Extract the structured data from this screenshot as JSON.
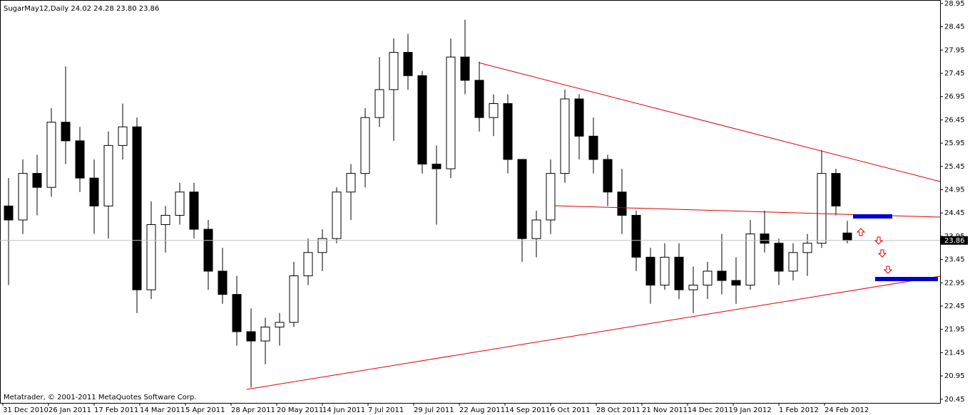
{
  "chart_data": {
    "type": "candlestick",
    "title": "SugarMay12,Daily  24.02 24.28 23.80 23.86",
    "footer": "Metatrader, © 2001-2011 MetaQuotes Software Corp.",
    "x": [
      2,
      7,
      12,
      17,
      22,
      27,
      32,
      37,
      42,
      47,
      52,
      57,
      62,
      67,
      72,
      77,
      82,
      87,
      92,
      97,
      102,
      107,
      112,
      117,
      122,
      127,
      132,
      137,
      142,
      147,
      152,
      157,
      162,
      167,
      172,
      177,
      182,
      187,
      192,
      197,
      202,
      207,
      212,
      217,
      222,
      227,
      232,
      237,
      242,
      247,
      252,
      257,
      262,
      267,
      272,
      277,
      282,
      287,
      292,
      296
    ],
    "open": [
      24.6,
      24.3,
      25.3,
      25.0,
      26.4,
      26.0,
      25.2,
      24.6,
      25.9,
      26.3,
      22.8,
      24.2,
      24.4,
      24.9,
      24.1,
      23.2,
      22.7,
      21.9,
      21.7,
      22.0,
      22.1,
      23.1,
      23.6,
      23.9,
      24.9,
      25.3,
      26.5,
      27.1,
      27.9,
      27.4,
      25.5,
      25.4,
      27.8,
      27.3,
      26.5,
      26.8,
      25.6,
      23.9,
      24.3,
      25.3,
      26.9,
      26.1,
      25.6,
      24.9,
      24.4,
      23.5,
      22.9,
      23.5,
      22.8,
      22.9,
      23.2,
      23.0,
      22.9,
      24.0,
      23.8,
      23.2,
      23.6,
      23.8,
      25.3,
      24.02
    ],
    "high": [
      25.2,
      25.6,
      25.7,
      26.7,
      27.6,
      26.3,
      25.6,
      26.2,
      26.8,
      26.5,
      24.7,
      24.6,
      25.1,
      25.1,
      24.3,
      23.7,
      23.1,
      22.4,
      22.2,
      22.3,
      23.4,
      23.9,
      24.1,
      25.0,
      25.5,
      26.7,
      27.8,
      28.2,
      28.3,
      27.5,
      25.9,
      28.2,
      28.6,
      27.7,
      27.0,
      27.0,
      25.6,
      24.5,
      25.6,
      27.1,
      27.0,
      26.5,
      25.7,
      25.4,
      24.5,
      23.7,
      23.8,
      23.8,
      23.3,
      23.4,
      24.0,
      23.5,
      24.3,
      24.5,
      23.9,
      23.8,
      24.0,
      25.8,
      25.4,
      24.28
    ],
    "low": [
      22.9,
      24.0,
      24.4,
      24.8,
      25.5,
      24.9,
      24.0,
      23.9,
      25.6,
      22.3,
      22.6,
      23.6,
      24.2,
      23.9,
      22.8,
      22.5,
      21.6,
      20.7,
      21.2,
      21.6,
      22.0,
      22.9,
      23.2,
      23.8,
      24.3,
      25.0,
      26.3,
      26.0,
      27.1,
      25.3,
      24.2,
      25.2,
      27.0,
      26.2,
      26.1,
      25.3,
      23.4,
      23.5,
      24.0,
      25.1,
      25.6,
      25.3,
      24.6,
      24.0,
      23.2,
      22.5,
      22.8,
      22.6,
      22.3,
      22.6,
      22.7,
      22.5,
      22.8,
      23.6,
      22.9,
      23.0,
      23.1,
      23.7,
      24.4,
      23.8
    ],
    "close": [
      24.3,
      25.3,
      25.0,
      26.4,
      26.0,
      25.2,
      24.6,
      25.9,
      26.3,
      22.8,
      24.2,
      24.4,
      24.9,
      24.1,
      23.2,
      22.7,
      21.9,
      21.7,
      22.0,
      22.1,
      23.1,
      23.6,
      23.9,
      24.9,
      25.3,
      26.5,
      27.1,
      27.9,
      27.4,
      25.5,
      25.4,
      27.8,
      27.3,
      26.5,
      26.8,
      25.6,
      23.9,
      24.3,
      25.3,
      26.9,
      26.1,
      25.6,
      24.9,
      24.4,
      23.5,
      22.9,
      23.5,
      22.8,
      22.9,
      23.2,
      23.0,
      22.9,
      24.0,
      23.8,
      23.2,
      23.6,
      23.8,
      25.3,
      24.6,
      23.86
    ],
    "up_color": "#ffffff",
    "down_color": "#000000",
    "last_price": 23.86,
    "xlim": [
      -1,
      328.5
    ],
    "xticks": [
      {
        "value": 0,
        "label": "31 Dec 2010"
      },
      {
        "value": 16,
        "label": "26 Jan 2011"
      },
      {
        "value": 32,
        "label": "17 Feb 2011"
      },
      {
        "value": 48,
        "label": "14 Mar 2011"
      },
      {
        "value": 64,
        "label": "5 Apr 2011"
      },
      {
        "value": 80,
        "label": "28 Apr 2011"
      },
      {
        "value": 96,
        "label": "20 May 2011"
      },
      {
        "value": 112,
        "label": "14 Jun 2011"
      },
      {
        "value": 128,
        "label": "7 Jul 2011"
      },
      {
        "value": 144,
        "label": "29 Jul 2011"
      },
      {
        "value": 160,
        "label": "22 Aug 2011"
      },
      {
        "value": 176,
        "label": "14 Sep 2011"
      },
      {
        "value": 192,
        "label": "6 Oct 2011"
      },
      {
        "value": 208,
        "label": "28 Oct 2011"
      },
      {
        "value": 224,
        "label": "21 Nov 2011"
      },
      {
        "value": 240,
        "label": "14 Dec 2011"
      },
      {
        "value": 256,
        "label": "9 Jan 2012"
      },
      {
        "value": 272,
        "label": "1 Feb 2012"
      },
      {
        "value": 288,
        "label": "24 Feb 2012"
      }
    ],
    "ylim": [
      20.37,
      29.01
    ],
    "yticks": [
      28.95,
      28.45,
      27.95,
      27.45,
      26.95,
      26.45,
      25.95,
      25.45,
      24.95,
      24.45,
      23.95,
      23.45,
      22.95,
      22.45,
      21.95,
      21.45,
      20.95,
      20.45
    ]
  }
}
